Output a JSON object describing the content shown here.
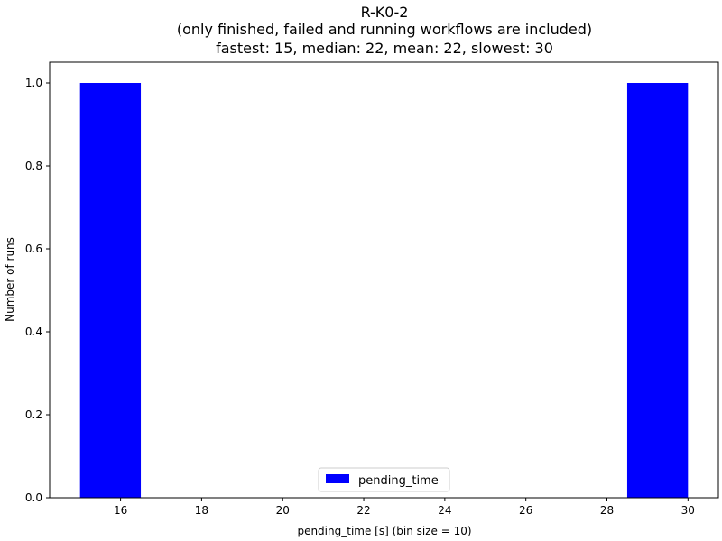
{
  "chart_data": {
    "type": "bar",
    "title": "R-K0-2",
    "subtitle": "(only finished, failed and running workflows are included)",
    "stats_line": "fastest: 15, median: 22, mean: 22, slowest: 30",
    "xlabel": "pending_time [s] (bin size = 10)",
    "ylabel": "Number of runs",
    "xlim": [
      14.25,
      30.75
    ],
    "ylim": [
      0,
      1.05
    ],
    "x_ticks": [
      16,
      18,
      20,
      22,
      24,
      26,
      28,
      30
    ],
    "y_ticks": [
      0.0,
      0.2,
      0.4,
      0.6,
      0.8,
      1.0
    ],
    "grid": false,
    "legend_placement": "lower-center",
    "series": [
      {
        "name": "pending_time",
        "color": "#0000ff",
        "bins": [
          {
            "start": 15.0,
            "end": 16.5,
            "count": 1
          },
          {
            "start": 16.5,
            "end": 18.0,
            "count": 0
          },
          {
            "start": 18.0,
            "end": 19.5,
            "count": 0
          },
          {
            "start": 19.5,
            "end": 21.0,
            "count": 0
          },
          {
            "start": 21.0,
            "end": 22.5,
            "count": 0
          },
          {
            "start": 22.5,
            "end": 24.0,
            "count": 0
          },
          {
            "start": 24.0,
            "end": 25.5,
            "count": 0
          },
          {
            "start": 25.5,
            "end": 27.0,
            "count": 0
          },
          {
            "start": 27.0,
            "end": 28.5,
            "count": 0
          },
          {
            "start": 28.5,
            "end": 30.0,
            "count": 1
          }
        ]
      }
    ]
  }
}
